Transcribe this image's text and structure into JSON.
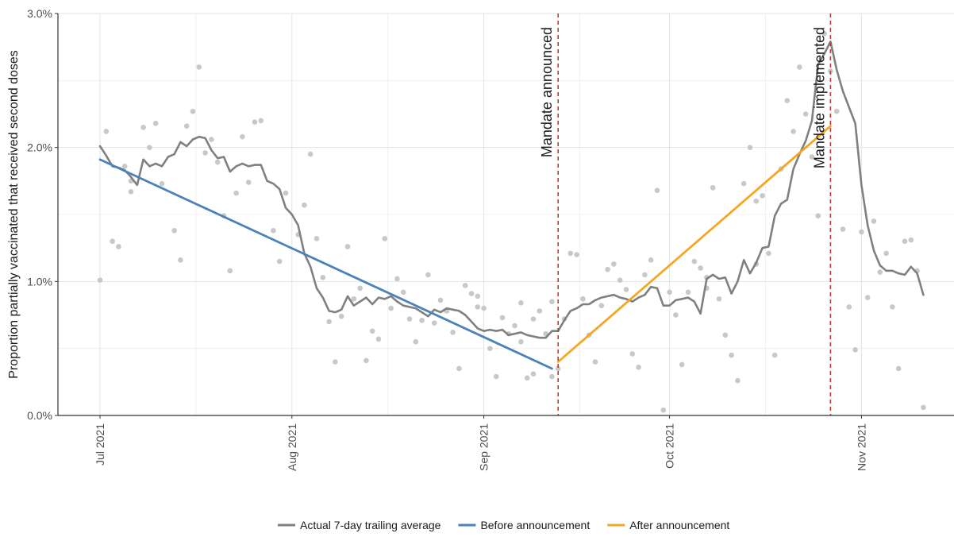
{
  "chart_data": {
    "type": "line",
    "ylabel": "Proportion partially vaccinated that received second doses",
    "xlabel": "",
    "xlim": [
      "2021-07-01",
      "2021-11-13"
    ],
    "ylim": [
      0,
      3.0
    ],
    "y_unit": "%",
    "y_ticks": [
      "0.0%",
      "1.0%",
      "2.0%",
      "3.0%"
    ],
    "x_ticks": [
      {
        "date": "2021-07-01",
        "label": "Jul 2021"
      },
      {
        "date": "2021-08-01",
        "label": "Aug 2021"
      },
      {
        "date": "2021-09-01",
        "label": "Sep 2021"
      },
      {
        "date": "2021-10-01",
        "label": "Oct 2021"
      },
      {
        "date": "2021-11-01",
        "label": "Nov 2021"
      }
    ],
    "grid": true,
    "legend_position": "bottom",
    "annotations": [
      {
        "date": "2021-09-13",
        "label": "Mandate announced",
        "color": "#c0392b"
      },
      {
        "date": "2021-10-27",
        "label": "Mandate implemented",
        "color": "#c0392b"
      }
    ],
    "scatter": {
      "name": "daily",
      "color": "#c8c8c8",
      "points": [
        [
          "2021-07-01",
          1.01
        ],
        [
          "2021-07-02",
          2.12
        ],
        [
          "2021-07-03",
          1.3
        ],
        [
          "2021-07-04",
          1.26
        ],
        [
          "2021-07-05",
          1.86
        ],
        [
          "2021-07-06",
          1.67
        ],
        [
          "2021-07-06",
          1.75
        ],
        [
          "2021-07-08",
          2.15
        ],
        [
          "2021-07-09",
          2.0
        ],
        [
          "2021-07-10",
          2.18
        ],
        [
          "2021-07-11",
          1.73
        ],
        [
          "2021-07-13",
          1.38
        ],
        [
          "2021-07-14",
          1.16
        ],
        [
          "2021-07-15",
          2.16
        ],
        [
          "2021-07-16",
          2.27
        ],
        [
          "2021-07-17",
          2.6
        ],
        [
          "2021-07-18",
          1.96
        ],
        [
          "2021-07-19",
          2.06
        ],
        [
          "2021-07-20",
          1.89
        ],
        [
          "2021-07-21",
          1.49
        ],
        [
          "2021-07-22",
          1.08
        ],
        [
          "2021-07-23",
          1.66
        ],
        [
          "2021-07-24",
          2.08
        ],
        [
          "2021-07-25",
          1.74
        ],
        [
          "2021-07-26",
          2.19
        ],
        [
          "2021-07-27",
          2.2
        ],
        [
          "2021-07-29",
          1.38
        ],
        [
          "2021-07-30",
          1.15
        ],
        [
          "2021-07-31",
          1.66
        ],
        [
          "2021-08-02",
          1.35
        ],
        [
          "2021-08-03",
          1.57
        ],
        [
          "2021-08-04",
          1.95
        ],
        [
          "2021-08-05",
          1.32
        ],
        [
          "2021-08-06",
          1.03
        ],
        [
          "2021-08-07",
          0.7
        ],
        [
          "2021-08-08",
          0.4
        ],
        [
          "2021-08-09",
          0.74
        ],
        [
          "2021-08-10",
          1.26
        ],
        [
          "2021-08-11",
          0.87
        ],
        [
          "2021-08-12",
          0.95
        ],
        [
          "2021-08-13",
          0.41
        ],
        [
          "2021-08-14",
          0.63
        ],
        [
          "2021-08-15",
          0.57
        ],
        [
          "2021-08-16",
          1.32
        ],
        [
          "2021-08-17",
          0.8
        ],
        [
          "2021-08-18",
          1.02
        ],
        [
          "2021-08-19",
          0.92
        ],
        [
          "2021-08-20",
          0.72
        ],
        [
          "2021-08-21",
          0.55
        ],
        [
          "2021-08-22",
          0.71
        ],
        [
          "2021-08-23",
          1.05
        ],
        [
          "2021-08-24",
          0.69
        ],
        [
          "2021-08-25",
          0.86
        ],
        [
          "2021-08-26",
          0.78
        ],
        [
          "2021-08-27",
          0.62
        ],
        [
          "2021-08-28",
          0.35
        ],
        [
          "2021-08-29",
          0.97
        ],
        [
          "2021-08-30",
          0.91
        ],
        [
          "2021-08-31",
          0.89
        ],
        [
          "2021-08-31",
          0.81
        ],
        [
          "2021-09-01",
          0.8
        ],
        [
          "2021-09-02",
          0.5
        ],
        [
          "2021-09-03",
          0.29
        ],
        [
          "2021-09-04",
          0.73
        ],
        [
          "2021-09-05",
          0.61
        ],
        [
          "2021-09-06",
          0.67
        ],
        [
          "2021-09-07",
          0.84
        ],
        [
          "2021-09-07",
          0.55
        ],
        [
          "2021-09-08",
          0.28
        ],
        [
          "2021-09-09",
          0.31
        ],
        [
          "2021-09-09",
          0.72
        ],
        [
          "2021-09-10",
          0.78
        ],
        [
          "2021-09-11",
          0.61
        ],
        [
          "2021-09-12",
          0.85
        ],
        [
          "2021-09-12",
          0.29
        ],
        [
          "2021-09-13",
          0.35
        ],
        [
          "2021-09-14",
          0.72
        ],
        [
          "2021-09-15",
          1.21
        ],
        [
          "2021-09-16",
          1.2
        ],
        [
          "2021-09-17",
          0.87
        ],
        [
          "2021-09-18",
          0.6
        ],
        [
          "2021-09-19",
          0.4
        ],
        [
          "2021-09-20",
          0.82
        ],
        [
          "2021-09-21",
          1.09
        ],
        [
          "2021-09-22",
          1.13
        ],
        [
          "2021-09-23",
          1.01
        ],
        [
          "2021-09-24",
          0.94
        ],
        [
          "2021-09-25",
          0.46
        ],
        [
          "2021-09-26",
          0.36
        ],
        [
          "2021-09-27",
          1.05
        ],
        [
          "2021-09-28",
          1.16
        ],
        [
          "2021-09-29",
          1.68
        ],
        [
          "2021-09-30",
          0.04
        ],
        [
          "2021-10-01",
          0.92
        ],
        [
          "2021-10-02",
          0.75
        ],
        [
          "2021-10-03",
          0.38
        ],
        [
          "2021-10-04",
          0.92
        ],
        [
          "2021-10-05",
          1.15
        ],
        [
          "2021-10-06",
          1.1
        ],
        [
          "2021-10-07",
          1.03
        ],
        [
          "2021-10-07",
          0.95
        ],
        [
          "2021-10-08",
          1.7
        ],
        [
          "2021-10-09",
          0.87
        ],
        [
          "2021-10-10",
          0.6
        ],
        [
          "2021-10-11",
          0.45
        ],
        [
          "2021-10-12",
          0.26
        ],
        [
          "2021-10-13",
          1.73
        ],
        [
          "2021-10-14",
          2.0
        ],
        [
          "2021-10-15",
          1.13
        ],
        [
          "2021-10-15",
          1.6
        ],
        [
          "2021-10-16",
          1.64
        ],
        [
          "2021-10-17",
          1.21
        ],
        [
          "2021-10-18",
          0.45
        ],
        [
          "2021-10-19",
          1.84
        ],
        [
          "2021-10-20",
          2.35
        ],
        [
          "2021-10-21",
          2.12
        ],
        [
          "2021-10-22",
          2.6
        ],
        [
          "2021-10-23",
          2.25
        ],
        [
          "2021-10-24",
          1.93
        ],
        [
          "2021-10-25",
          1.49
        ],
        [
          "2021-10-26",
          2.85
        ],
        [
          "2021-10-27",
          2.57
        ],
        [
          "2021-10-28",
          2.27
        ],
        [
          "2021-10-29",
          1.39
        ],
        [
          "2021-10-30",
          0.81
        ],
        [
          "2021-10-31",
          0.49
        ],
        [
          "2021-11-01",
          1.37
        ],
        [
          "2021-11-02",
          0.88
        ],
        [
          "2021-11-03",
          1.45
        ],
        [
          "2021-11-04",
          1.07
        ],
        [
          "2021-11-05",
          1.21
        ],
        [
          "2021-11-06",
          0.81
        ],
        [
          "2021-11-07",
          0.35
        ],
        [
          "2021-11-08",
          1.3
        ],
        [
          "2021-11-09",
          1.31
        ],
        [
          "2021-11-10",
          1.08
        ],
        [
          "2021-11-11",
          0.06
        ]
      ]
    },
    "series": [
      {
        "name": "Actual 7-day trailing average",
        "color": "#808080",
        "points": [
          [
            "2021-07-01",
            2.01
          ],
          [
            "2021-07-02",
            1.94
          ],
          [
            "2021-07-03",
            1.86
          ],
          [
            "2021-07-04",
            1.85
          ],
          [
            "2021-07-05",
            1.83
          ],
          [
            "2021-07-06",
            1.78
          ],
          [
            "2021-07-07",
            1.72
          ],
          [
            "2021-07-08",
            1.91
          ],
          [
            "2021-07-09",
            1.86
          ],
          [
            "2021-07-10",
            1.88
          ],
          [
            "2021-07-11",
            1.86
          ],
          [
            "2021-07-12",
            1.93
          ],
          [
            "2021-07-13",
            1.95
          ],
          [
            "2021-07-14",
            2.04
          ],
          [
            "2021-07-15",
            2.01
          ],
          [
            "2021-07-16",
            2.06
          ],
          [
            "2021-07-17",
            2.08
          ],
          [
            "2021-07-18",
            2.07
          ],
          [
            "2021-07-19",
            1.98
          ],
          [
            "2021-07-20",
            1.92
          ],
          [
            "2021-07-21",
            1.93
          ],
          [
            "2021-07-22",
            1.82
          ],
          [
            "2021-07-23",
            1.86
          ],
          [
            "2021-07-24",
            1.88
          ],
          [
            "2021-07-25",
            1.86
          ],
          [
            "2021-07-26",
            1.87
          ],
          [
            "2021-07-27",
            1.87
          ],
          [
            "2021-07-28",
            1.75
          ],
          [
            "2021-07-29",
            1.73
          ],
          [
            "2021-07-30",
            1.69
          ],
          [
            "2021-07-31",
            1.55
          ],
          [
            "2021-08-01",
            1.5
          ],
          [
            "2021-08-02",
            1.42
          ],
          [
            "2021-08-03",
            1.21
          ],
          [
            "2021-08-04",
            1.11
          ],
          [
            "2021-08-05",
            0.95
          ],
          [
            "2021-08-06",
            0.88
          ],
          [
            "2021-08-07",
            0.78
          ],
          [
            "2021-08-08",
            0.77
          ],
          [
            "2021-08-09",
            0.79
          ],
          [
            "2021-08-10",
            0.89
          ],
          [
            "2021-08-11",
            0.82
          ],
          [
            "2021-08-12",
            0.85
          ],
          [
            "2021-08-13",
            0.88
          ],
          [
            "2021-08-14",
            0.83
          ],
          [
            "2021-08-15",
            0.88
          ],
          [
            "2021-08-16",
            0.87
          ],
          [
            "2021-08-17",
            0.89
          ],
          [
            "2021-08-18",
            0.85
          ],
          [
            "2021-08-19",
            0.82
          ],
          [
            "2021-08-20",
            0.81
          ],
          [
            "2021-08-21",
            0.8
          ],
          [
            "2021-08-22",
            0.77
          ],
          [
            "2021-08-23",
            0.74
          ],
          [
            "2021-08-24",
            0.79
          ],
          [
            "2021-08-25",
            0.77
          ],
          [
            "2021-08-26",
            0.8
          ],
          [
            "2021-08-27",
            0.79
          ],
          [
            "2021-08-28",
            0.78
          ],
          [
            "2021-08-29",
            0.75
          ],
          [
            "2021-08-30",
            0.7
          ],
          [
            "2021-08-31",
            0.65
          ],
          [
            "2021-09-01",
            0.63
          ],
          [
            "2021-09-02",
            0.64
          ],
          [
            "2021-09-03",
            0.63
          ],
          [
            "2021-09-04",
            0.64
          ],
          [
            "2021-09-05",
            0.6
          ],
          [
            "2021-09-06",
            0.61
          ],
          [
            "2021-09-07",
            0.62
          ],
          [
            "2021-09-08",
            0.6
          ],
          [
            "2021-09-09",
            0.59
          ],
          [
            "2021-09-10",
            0.58
          ],
          [
            "2021-09-11",
            0.58
          ],
          [
            "2021-09-12",
            0.63
          ],
          [
            "2021-09-13",
            0.63
          ],
          [
            "2021-09-14",
            0.71
          ],
          [
            "2021-09-15",
            0.78
          ],
          [
            "2021-09-16",
            0.8
          ],
          [
            "2021-09-17",
            0.83
          ],
          [
            "2021-09-18",
            0.83
          ],
          [
            "2021-09-19",
            0.86
          ],
          [
            "2021-09-20",
            0.88
          ],
          [
            "2021-09-21",
            0.89
          ],
          [
            "2021-09-22",
            0.9
          ],
          [
            "2021-09-23",
            0.88
          ],
          [
            "2021-09-24",
            0.87
          ],
          [
            "2021-09-25",
            0.85
          ],
          [
            "2021-09-26",
            0.88
          ],
          [
            "2021-09-27",
            0.9
          ],
          [
            "2021-09-28",
            0.96
          ],
          [
            "2021-09-29",
            0.95
          ],
          [
            "2021-09-30",
            0.82
          ],
          [
            "2021-10-01",
            0.82
          ],
          [
            "2021-10-02",
            0.86
          ],
          [
            "2021-10-03",
            0.87
          ],
          [
            "2021-10-04",
            0.88
          ],
          [
            "2021-10-05",
            0.85
          ],
          [
            "2021-10-06",
            0.76
          ],
          [
            "2021-10-07",
            1.02
          ],
          [
            "2021-10-08",
            1.05
          ],
          [
            "2021-10-09",
            1.02
          ],
          [
            "2021-10-10",
            1.03
          ],
          [
            "2021-10-11",
            0.91
          ],
          [
            "2021-10-12",
            1.0
          ],
          [
            "2021-10-13",
            1.16
          ],
          [
            "2021-10-14",
            1.06
          ],
          [
            "2021-10-15",
            1.14
          ],
          [
            "2021-10-16",
            1.25
          ],
          [
            "2021-10-17",
            1.26
          ],
          [
            "2021-10-18",
            1.49
          ],
          [
            "2021-10-19",
            1.58
          ],
          [
            "2021-10-20",
            1.61
          ],
          [
            "2021-10-21",
            1.84
          ],
          [
            "2021-10-22",
            1.95
          ],
          [
            "2021-10-23",
            2.05
          ],
          [
            "2021-10-24",
            2.2
          ],
          [
            "2021-10-25",
            2.62
          ],
          [
            "2021-10-26",
            2.7
          ],
          [
            "2021-10-27",
            2.79
          ],
          [
            "2021-10-28",
            2.58
          ],
          [
            "2021-10-29",
            2.42
          ],
          [
            "2021-10-30",
            2.3
          ],
          [
            "2021-10-31",
            2.18
          ],
          [
            "2021-11-01",
            1.72
          ],
          [
            "2021-11-02",
            1.42
          ],
          [
            "2021-11-03",
            1.23
          ],
          [
            "2021-11-04",
            1.12
          ],
          [
            "2021-11-05",
            1.08
          ],
          [
            "2021-11-06",
            1.08
          ],
          [
            "2021-11-07",
            1.06
          ],
          [
            "2021-11-08",
            1.05
          ],
          [
            "2021-11-09",
            1.11
          ],
          [
            "2021-11-10",
            1.06
          ],
          [
            "2021-11-11",
            0.9
          ]
        ]
      },
      {
        "name": "Before announcement",
        "color": "#4a82b9",
        "points": [
          [
            "2021-07-01",
            1.91
          ],
          [
            "2021-09-12",
            0.35
          ]
        ]
      },
      {
        "name": "After announcement",
        "color": "#f5a623",
        "points": [
          [
            "2021-09-13",
            0.4
          ],
          [
            "2021-10-27",
            2.16
          ]
        ]
      }
    ]
  }
}
